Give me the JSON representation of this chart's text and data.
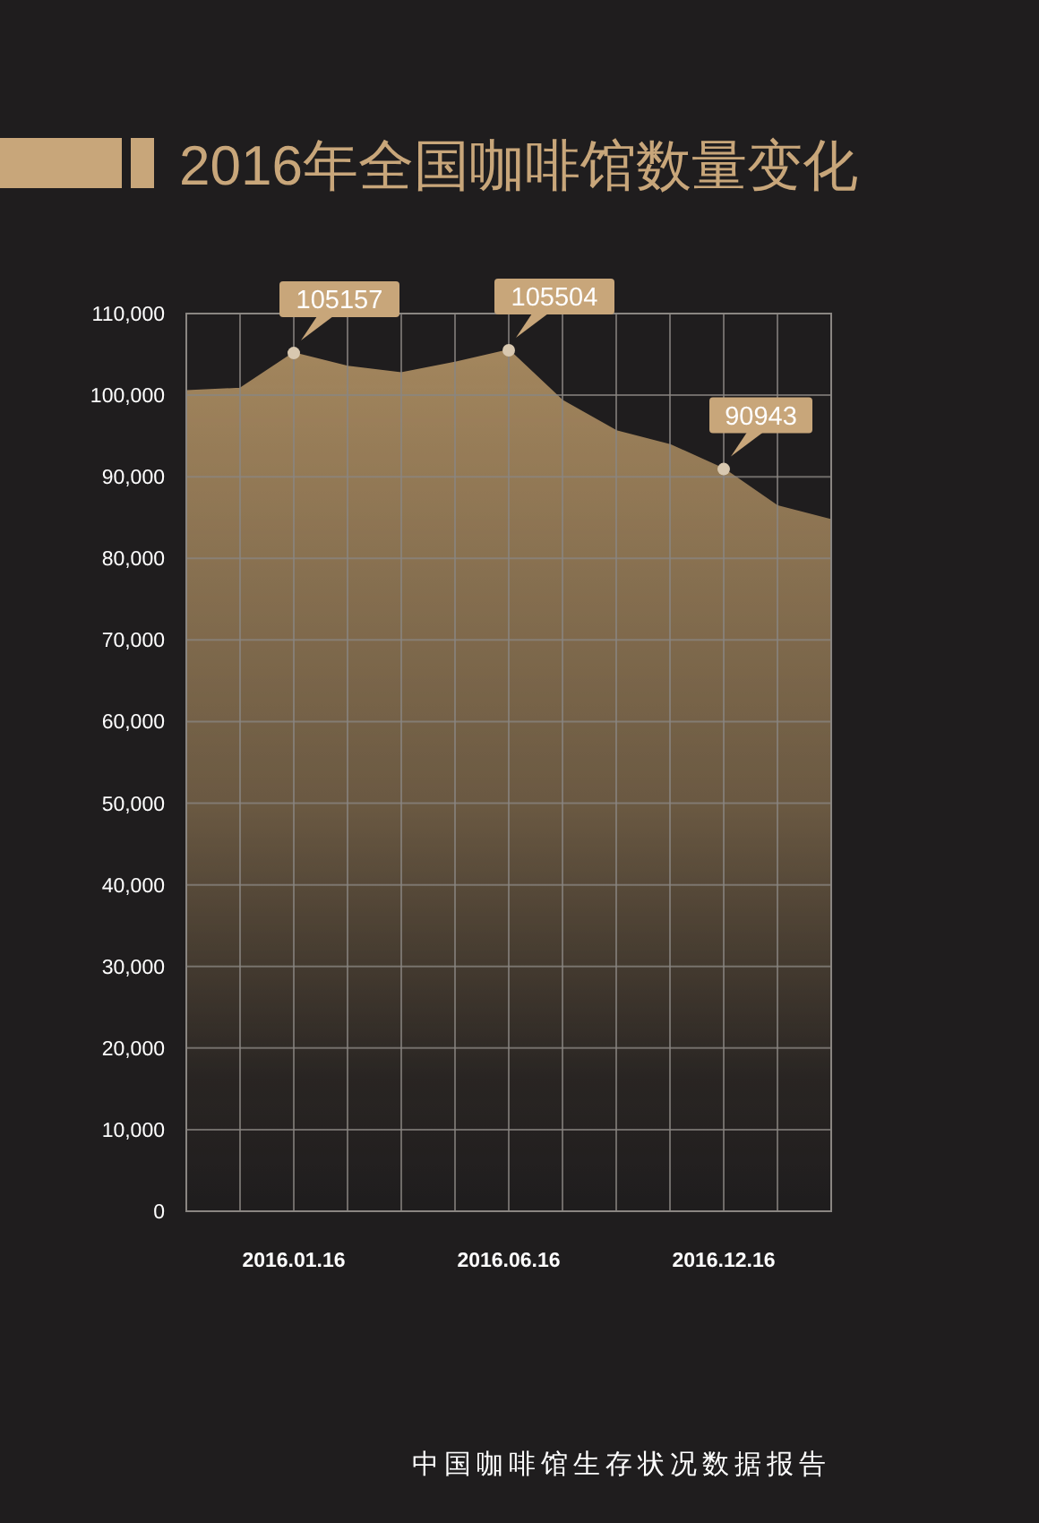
{
  "chart_data": {
    "type": "area",
    "title": "2016年全国咖啡馆数量变化",
    "categories": [
      null,
      null,
      "2016.01.16",
      null,
      null,
      null,
      "2016.06.16",
      null,
      null,
      null,
      "2016.12.16",
      null,
      null
    ],
    "series": [
      {
        "color": "#a88a60",
        "values": [
          100500,
          100800,
          105157,
          103500,
          102700,
          104000,
          105504,
          99300,
          95600,
          93900,
          90943,
          86400,
          84700
        ],
        "value_labels": [
          null,
          null,
          "105157",
          null,
          null,
          null,
          "105504",
          null,
          null,
          null,
          "90943",
          null,
          null
        ]
      }
    ],
    "ylim": [
      0,
      110000
    ],
    "yticks": [
      0,
      {
        "value": 10000,
        "label": "10,000"
      },
      {
        "value": 20000,
        "label": "20,000"
      },
      {
        "value": 30000,
        "label": "30,000"
      },
      {
        "value": 40000,
        "label": "40,000"
      },
      {
        "value": 50000,
        "label": "50,000"
      },
      {
        "value": 60000,
        "label": "60,000"
      },
      {
        "value": 70000,
        "label": "70,000"
      },
      {
        "value": 80000,
        "label": "80,000"
      },
      {
        "value": 90000,
        "label": "90,000"
      },
      {
        "value": 100000,
        "label": "100,000"
      },
      {
        "value": 110000,
        "label": "110,000"
      }
    ],
    "grid": true,
    "annotations": [
      "中国咖啡馆生存状况数据报告"
    ]
  }
}
